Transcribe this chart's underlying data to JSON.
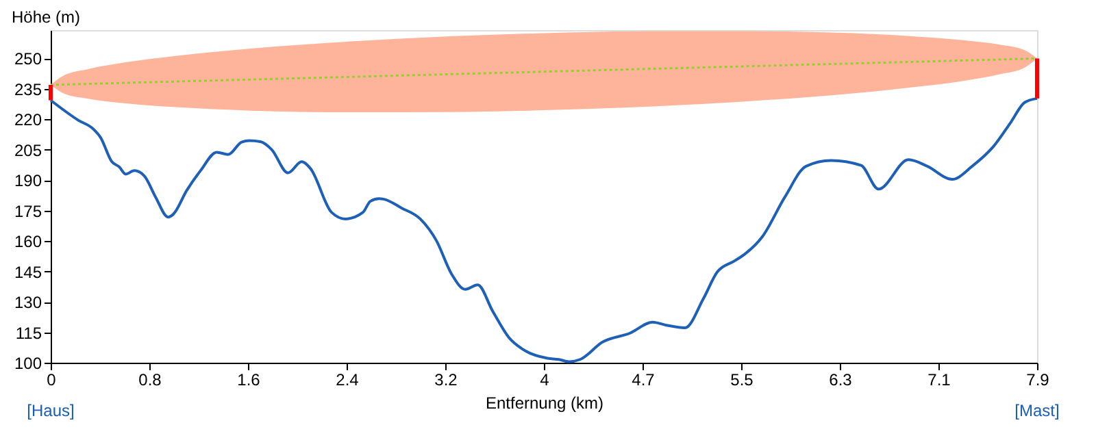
{
  "chart_data": {
    "type": "line",
    "ylabel": "Höhe (m)",
    "xlabel": "Entfernung (km)",
    "xlim": [
      0,
      7.9
    ],
    "ylim": [
      100,
      264
    ],
    "xticks": [
      0,
      {
        "value": 0.79,
        "label": "0.8"
      },
      {
        "value": 1.58,
        "label": "1.6"
      },
      {
        "value": 2.37,
        "label": "2.4"
      },
      {
        "value": 3.16,
        "label": "3.2"
      },
      {
        "value": 3.95,
        "label": "4"
      },
      {
        "value": 4.74,
        "label": "4.7"
      },
      {
        "value": 5.53,
        "label": "5.5"
      },
      {
        "value": 6.32,
        "label": "6.3"
      },
      {
        "value": 7.11,
        "label": "7.1"
      },
      7.9
    ],
    "yticks": [
      100,
      115,
      130,
      145,
      160,
      175,
      190,
      205,
      220,
      235,
      250
    ],
    "grid": false,
    "annotations": [
      "[Haus]",
      "[Mast]"
    ],
    "series": [
      {
        "color": "#9acd32",
        "line_style": "dotted",
        "x": [
          0,
          0.1,
          0.3,
          0.6,
          1.0,
          1.6,
          2.4,
          3.2,
          3.95,
          4.7,
          5.5,
          6.3,
          6.9,
          7.3,
          7.6,
          7.8,
          7.9
        ],
        "values": [
          237,
          237.16,
          237.49,
          237.99,
          238.65,
          239.63,
          240.95,
          242.27,
          243.5,
          244.73,
          246.05,
          247.37,
          248.35,
          249.01,
          249.5,
          249.84,
          250
        ],
        "lower": [
          237,
          232.9,
          230.2,
          227.9,
          226.0,
          224.3,
          223.5,
          223.6,
          224.5,
          226.0,
          228.6,
          232.1,
          235.8,
          238.9,
          242.2,
          245.5,
          250
        ],
        "upper": [
          237,
          241.5,
          244.8,
          248.1,
          251.3,
          254.9,
          258.4,
          261.0,
          262.5,
          263.4,
          263.5,
          262.7,
          261.0,
          259.1,
          256.8,
          254.1,
          250
        ]
      },
      {
        "color": "#1e60b8",
        "line_style": "solid",
        "x": [
          0,
          0.22,
          0.34,
          0.4,
          0.49,
          0.55,
          0.6,
          0.67,
          0.75,
          0.84,
          0.94,
          0.98,
          1.09,
          1.2,
          1.33,
          1.42,
          1.53,
          1.59,
          1.68,
          1.77,
          1.9,
          2.01,
          2.08,
          2.25,
          2.36,
          2.5,
          2.56,
          2.63,
          2.67,
          2.81,
          2.96,
          3.09,
          3.21,
          3.32,
          3.42,
          3.54,
          3.67,
          3.8,
          3.98,
          4.07,
          4.15,
          4.24,
          4.42,
          4.64,
          4.82,
          4.93,
          5.08,
          5.23,
          5.34,
          5.48,
          5.56,
          5.7,
          5.88,
          6.05,
          6.25,
          6.49,
          6.63,
          6.87,
          7.02,
          7.22,
          7.38,
          7.55,
          7.69,
          7.8,
          7.9
        ],
        "values": [
          229.4,
          219.6,
          215.3,
          211,
          199.1,
          196.5,
          193,
          194.7,
          192.1,
          181.7,
          171.8,
          173.1,
          185,
          194.7,
          203.8,
          202.7,
          208.8,
          209.5,
          209,
          205.1,
          193.6,
          199.1,
          195.8,
          174.1,
          170.9,
          174.1,
          179.6,
          180.9,
          180.6,
          176.3,
          170.9,
          160.1,
          143.8,
          136.2,
          138.4,
          125.4,
          112.4,
          105.9,
          102.2,
          101.6,
          100.5,
          101.6,
          110.2,
          114.6,
          120,
          118.5,
          117.2,
          131.9,
          144.9,
          150.3,
          153.6,
          162.2,
          181.7,
          196.9,
          199.7,
          197.3,
          185.6,
          200.1,
          196.9,
          190.4,
          196.9,
          206.6,
          218.6,
          228.3,
          230.3
        ]
      },
      {
        "color": "#ff0000",
        "line_style": "solid",
        "x": [
          0,
          0
        ],
        "values": [
          229.4,
          237
        ]
      },
      {
        "color": "#ff0000",
        "line_style": "solid",
        "x": [
          7.9,
          7.9
        ],
        "values": [
          230.3,
          250
        ]
      }
    ]
  }
}
